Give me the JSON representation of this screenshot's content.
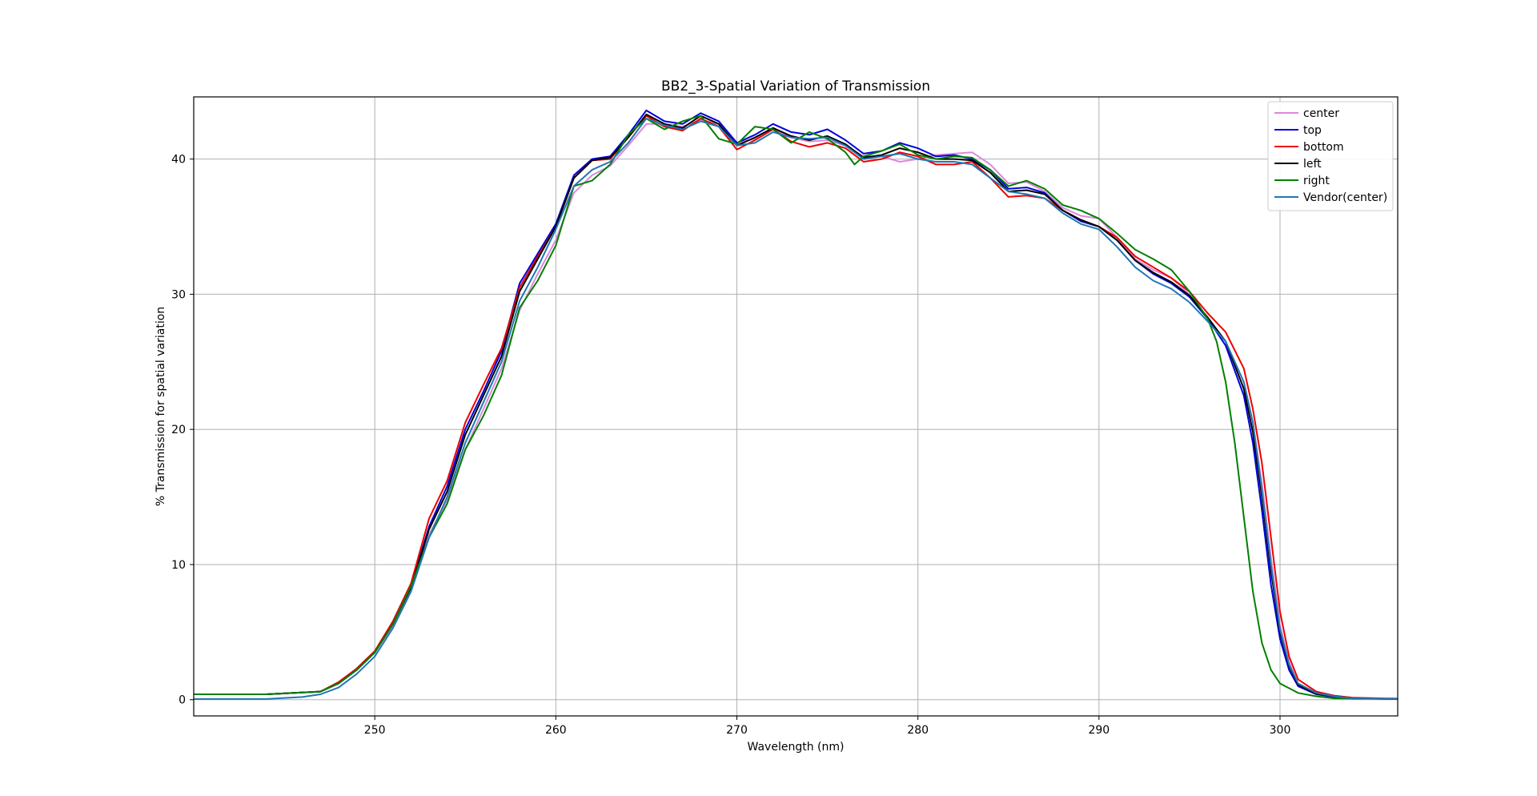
{
  "chart_data": {
    "type": "line",
    "title": "BB2_3-Spatial Variation of Transmission",
    "xlabel": "Wavelength (nm)",
    "ylabel": "% Transmission for spatial variation",
    "xlim": [
      240,
      306.5
    ],
    "ylim": [
      -1.2,
      44.6
    ],
    "x_ticks": [
      250,
      260,
      270,
      280,
      290,
      300
    ],
    "y_ticks": [
      0,
      10,
      20,
      30,
      40
    ],
    "grid": true,
    "legend_position": "top-right",
    "series": [
      {
        "name": "center",
        "color": "#dd88dd",
        "x": [
          240,
          244,
          247,
          248,
          249,
          250,
          251,
          252,
          253,
          254,
          255,
          256,
          257,
          258,
          259,
          260,
          261,
          262,
          263,
          264,
          265,
          266,
          267,
          268,
          269,
          270,
          271,
          272,
          273,
          274,
          275,
          276,
          277,
          278,
          279,
          280,
          281,
          282,
          283,
          284,
          285,
          286,
          287,
          288,
          289,
          290,
          291,
          292,
          293,
          294,
          295,
          296,
          297,
          298,
          298.5,
          299,
          299.5,
          300,
          300.5,
          301,
          302,
          303,
          304,
          306.5
        ],
        "y": [
          0.4,
          0.4,
          0.6,
          1.2,
          2.2,
          3.5,
          5.5,
          8.2,
          12.2,
          14.8,
          18.5,
          21.5,
          24.5,
          28.8,
          31.5,
          34.0,
          37.5,
          38.8,
          39.5,
          41.0,
          42.6,
          42.6,
          42.4,
          42.9,
          42.6,
          41.2,
          41.5,
          42.2,
          41.6,
          41.3,
          41.4,
          41.0,
          40.2,
          40.2,
          39.8,
          40.0,
          40.3,
          40.4,
          40.5,
          39.6,
          38.2,
          38.3,
          37.6,
          36.4,
          35.8,
          35.6,
          34.2,
          32.6,
          31.8,
          31.2,
          30.0,
          28.2,
          26.5,
          23.5,
          20.5,
          16.0,
          10.5,
          5.5,
          2.8,
          1.2,
          0.5,
          0.3,
          0.15,
          0.1
        ]
      },
      {
        "name": "top",
        "color": "#0000dd",
        "x": [
          240,
          244,
          247,
          248,
          249,
          250,
          251,
          252,
          253,
          254,
          255,
          256,
          257,
          258,
          259,
          260,
          261,
          262,
          263,
          264,
          265,
          266,
          267,
          268,
          269,
          270,
          271,
          272,
          273,
          274,
          275,
          276,
          277,
          278,
          279,
          280,
          281,
          282,
          283,
          284,
          285,
          286,
          287,
          288,
          289,
          290,
          291,
          292,
          293,
          294,
          295,
          296,
          297,
          298,
          298.5,
          299,
          299.5,
          300,
          300.5,
          301,
          302,
          303,
          304,
          306.5
        ],
        "y": [
          0.4,
          0.4,
          0.6,
          1.2,
          2.2,
          3.5,
          5.6,
          8.4,
          12.8,
          15.8,
          20.0,
          22.8,
          25.8,
          30.8,
          33.0,
          35.2,
          38.8,
          40.0,
          40.2,
          41.8,
          43.6,
          42.8,
          42.6,
          43.4,
          42.8,
          41.2,
          41.8,
          42.6,
          42.0,
          41.8,
          42.2,
          41.4,
          40.4,
          40.6,
          41.2,
          40.8,
          40.2,
          40.3,
          40.0,
          39.2,
          37.8,
          37.9,
          37.5,
          36.2,
          35.4,
          35.0,
          34.0,
          32.5,
          31.5,
          30.8,
          29.8,
          28.2,
          26.2,
          22.5,
          19.0,
          14.0,
          8.5,
          4.5,
          2.2,
          1.0,
          0.4,
          0.2,
          0.1,
          0.05
        ]
      },
      {
        "name": "bottom",
        "color": "#ee0000",
        "x": [
          240,
          244,
          247,
          248,
          249,
          250,
          251,
          252,
          253,
          254,
          255,
          256,
          257,
          258,
          259,
          260,
          261,
          262,
          263,
          264,
          265,
          266,
          267,
          268,
          269,
          270,
          271,
          272,
          273,
          274,
          275,
          276,
          277,
          278,
          279,
          280,
          281,
          282,
          283,
          284,
          285,
          286,
          287,
          288,
          289,
          290,
          291,
          292,
          293,
          294,
          295,
          296,
          297,
          298,
          298.5,
          299,
          299.5,
          300,
          300.5,
          301,
          302,
          303,
          304,
          306.5
        ],
        "y": [
          0.4,
          0.4,
          0.6,
          1.3,
          2.3,
          3.6,
          5.8,
          8.6,
          13.4,
          16.2,
          20.5,
          23.3,
          26.0,
          30.5,
          32.8,
          35.0,
          38.6,
          39.9,
          40.0,
          41.6,
          43.2,
          42.4,
          42.1,
          43.0,
          42.4,
          40.7,
          41.4,
          42.2,
          41.3,
          40.9,
          41.2,
          40.8,
          39.8,
          40.0,
          40.5,
          40.2,
          39.6,
          39.6,
          39.8,
          38.6,
          37.2,
          37.3,
          37.1,
          36.2,
          35.5,
          35.0,
          34.2,
          32.8,
          32.0,
          31.2,
          30.2,
          28.6,
          27.2,
          24.5,
          21.5,
          17.5,
          12.0,
          6.5,
          3.2,
          1.5,
          0.6,
          0.3,
          0.15,
          0.05
        ]
      },
      {
        "name": "left",
        "color": "#000000",
        "x": [
          240,
          244,
          247,
          248,
          249,
          250,
          251,
          252,
          253,
          254,
          255,
          256,
          257,
          258,
          259,
          260,
          261,
          262,
          263,
          264,
          265,
          266,
          267,
          268,
          269,
          270,
          271,
          272,
          273,
          274,
          275,
          276,
          277,
          278,
          279,
          280,
          281,
          282,
          283,
          284,
          285,
          286,
          287,
          288,
          289,
          290,
          291,
          292,
          293,
          294,
          295,
          296,
          297,
          298,
          298.5,
          299,
          299.5,
          300,
          300.5,
          301,
          302,
          303,
          304,
          306.5
        ],
        "y": [
          0.4,
          0.4,
          0.6,
          1.2,
          2.2,
          3.5,
          5.6,
          8.3,
          12.6,
          15.4,
          19.6,
          22.5,
          25.4,
          30.2,
          32.6,
          35.0,
          38.6,
          39.9,
          40.1,
          41.6,
          43.3,
          42.6,
          42.3,
          43.2,
          42.6,
          41.0,
          41.6,
          42.3,
          41.7,
          41.4,
          41.7,
          41.1,
          40.1,
          40.3,
          40.8,
          40.5,
          40.0,
          40.0,
          39.9,
          39.0,
          37.6,
          37.7,
          37.4,
          36.2,
          35.5,
          35.0,
          34.0,
          32.5,
          31.6,
          30.9,
          29.9,
          28.3,
          26.5,
          23.0,
          19.8,
          15.0,
          9.5,
          5.0,
          2.5,
          1.1,
          0.45,
          0.25,
          0.1,
          0.05
        ]
      },
      {
        "name": "right",
        "color": "#008000",
        "x": [
          240,
          244,
          247,
          248,
          249,
          250,
          251,
          252,
          253,
          254,
          255,
          256,
          257,
          258,
          259,
          260,
          261,
          262,
          263,
          264,
          265,
          266,
          267,
          268,
          269,
          270,
          271,
          272,
          273,
          274,
          275,
          276,
          276.5,
          277,
          278,
          279,
          280,
          281,
          282,
          283,
          284,
          285,
          286,
          287,
          288,
          289,
          290,
          291,
          292,
          293,
          294,
          295,
          296,
          296.5,
          297,
          297.5,
          298,
          298.5,
          299,
          299.5,
          300,
          301,
          302,
          303,
          306.5
        ],
        "y": [
          0.4,
          0.4,
          0.6,
          1.2,
          2.2,
          3.5,
          5.6,
          8.4,
          12.0,
          14.5,
          18.5,
          21.0,
          24.0,
          29.0,
          31.0,
          33.6,
          38.0,
          38.4,
          39.6,
          41.8,
          43.0,
          42.2,
          42.8,
          43.2,
          41.5,
          41.1,
          42.4,
          42.2,
          41.2,
          42.0,
          41.5,
          40.5,
          39.6,
          40.2,
          40.6,
          41.1,
          40.3,
          40.0,
          40.2,
          40.1,
          39.2,
          38.0,
          38.4,
          37.8,
          36.6,
          36.2,
          35.6,
          34.5,
          33.3,
          32.6,
          31.8,
          30.2,
          28.2,
          26.5,
          23.5,
          19.0,
          13.5,
          8.0,
          4.2,
          2.2,
          1.2,
          0.5,
          0.25,
          0.1,
          0.05
        ]
      },
      {
        "name": "Vendor(center)",
        "color": "#1f77b4",
        "x": [
          240,
          244,
          246,
          247,
          248,
          249,
          250,
          251,
          252,
          253,
          254,
          255,
          256,
          257,
          258,
          259,
          260,
          261,
          262,
          263,
          264,
          265,
          266,
          267,
          268,
          269,
          270,
          271,
          272,
          273,
          274,
          275,
          276,
          277,
          278,
          279,
          280,
          281,
          282,
          283,
          284,
          285,
          286,
          287,
          288,
          289,
          290,
          291,
          292,
          293,
          294,
          295,
          296,
          297,
          298,
          298.5,
          299,
          299.5,
          300,
          300.5,
          301,
          302,
          303,
          304,
          306.5
        ],
        "y": [
          0.05,
          0.05,
          0.2,
          0.4,
          0.9,
          1.9,
          3.2,
          5.3,
          8.0,
          12.0,
          15.0,
          19.0,
          22.0,
          25.0,
          29.5,
          32.0,
          34.8,
          38.0,
          39.2,
          39.8,
          41.2,
          43.0,
          42.5,
          42.2,
          42.8,
          42.4,
          41.0,
          41.2,
          42.0,
          41.6,
          41.5,
          41.6,
          41.0,
          40.0,
          40.2,
          40.4,
          40.0,
          39.8,
          39.8,
          39.6,
          38.6,
          37.6,
          37.4,
          37.1,
          36.0,
          35.2,
          34.8,
          33.5,
          32.0,
          31.0,
          30.4,
          29.4,
          28.0,
          26.5,
          23.5,
          20.5,
          15.5,
          10.0,
          5.2,
          2.6,
          1.2,
          0.5,
          0.25,
          0.1,
          0.05
        ]
      }
    ]
  }
}
